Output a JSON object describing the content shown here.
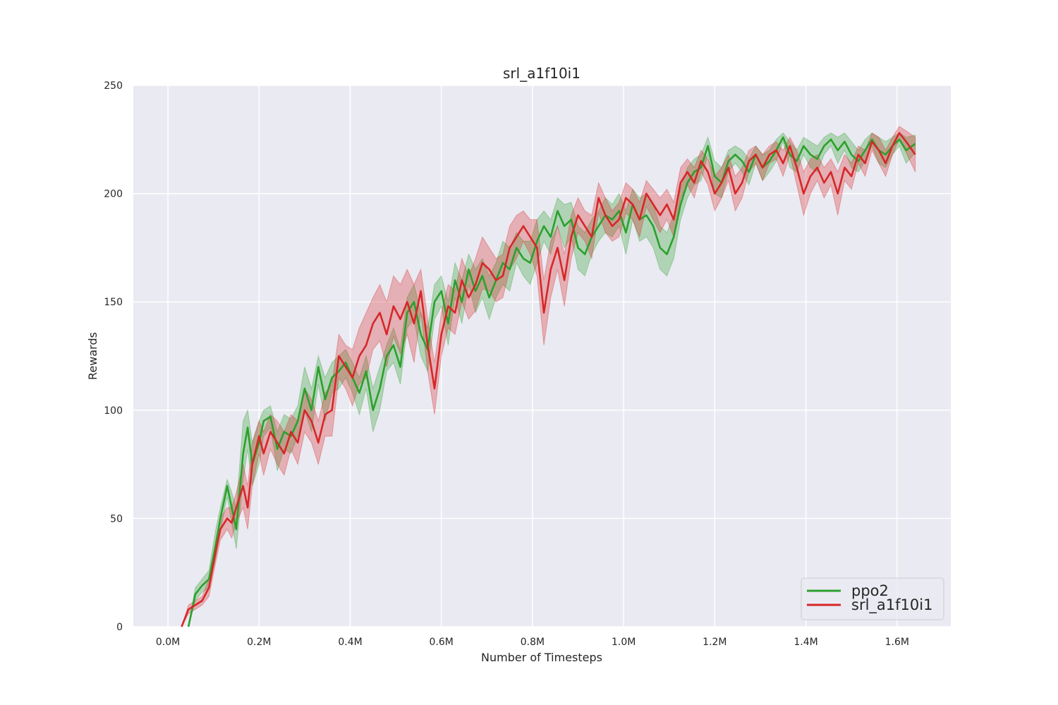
{
  "chart_data": {
    "type": "line",
    "title": "srl_a1f10i1",
    "xlabel": "Number of Timesteps",
    "ylabel": "Rewards",
    "xlim": [
      -76000,
      1718000
    ],
    "ylim": [
      0,
      250
    ],
    "xticks": [
      0,
      200000,
      400000,
      600000,
      800000,
      1000000,
      1200000,
      1400000,
      1600000
    ],
    "xtick_labels": [
      "0.0M",
      "0.2M",
      "0.4M",
      "0.6M",
      "0.8M",
      "1.0M",
      "1.2M",
      "1.4M",
      "1.6M"
    ],
    "yticks": [
      0,
      50,
      100,
      150,
      200,
      250
    ],
    "ytick_labels": [
      "0",
      "50",
      "100",
      "150",
      "200",
      "250"
    ],
    "grid": true,
    "background": "#eaeaf2",
    "legend_position": "bottom-right",
    "series": [
      {
        "name": "ppo2",
        "color": "#2ca02c",
        "x": [
          45000,
          60000,
          75000,
          90000,
          105000,
          115000,
          130000,
          140000,
          150000,
          165000,
          175000,
          185000,
          200000,
          210000,
          225000,
          240000,
          255000,
          270000,
          285000,
          300000,
          315000,
          330000,
          345000,
          360000,
          375000,
          390000,
          405000,
          420000,
          435000,
          450000,
          465000,
          480000,
          495000,
          510000,
          525000,
          540000,
          555000,
          570000,
          585000,
          600000,
          615000,
          630000,
          645000,
          660000,
          675000,
          690000,
          705000,
          720000,
          735000,
          750000,
          765000,
          780000,
          795000,
          810000,
          825000,
          840000,
          855000,
          870000,
          885000,
          900000,
          915000,
          930000,
          945000,
          960000,
          975000,
          990000,
          1005000,
          1020000,
          1035000,
          1050000,
          1065000,
          1080000,
          1095000,
          1110000,
          1125000,
          1140000,
          1155000,
          1170000,
          1185000,
          1200000,
          1215000,
          1230000,
          1245000,
          1260000,
          1275000,
          1290000,
          1305000,
          1320000,
          1335000,
          1350000,
          1365000,
          1380000,
          1395000,
          1410000,
          1425000,
          1440000,
          1455000,
          1470000,
          1485000,
          1500000,
          1515000,
          1530000,
          1545000,
          1560000,
          1575000,
          1590000,
          1605000,
          1620000,
          1640000
        ],
        "y": [
          0,
          15,
          19,
          22,
          38,
          50,
          65,
          55,
          45,
          80,
          92,
          75,
          85,
          95,
          97,
          82,
          90,
          88,
          95,
          110,
          100,
          120,
          105,
          115,
          118,
          122,
          115,
          108,
          118,
          100,
          110,
          125,
          130,
          120,
          145,
          150,
          135,
          128,
          150,
          155,
          140,
          160,
          150,
          165,
          155,
          162,
          152,
          160,
          168,
          165,
          175,
          170,
          168,
          178,
          185,
          180,
          192,
          185,
          188,
          175,
          172,
          180,
          185,
          190,
          188,
          192,
          182,
          195,
          188,
          190,
          185,
          175,
          172,
          180,
          195,
          205,
          210,
          212,
          222,
          208,
          205,
          215,
          218,
          215,
          210,
          218,
          212,
          215,
          220,
          226,
          218,
          215,
          222,
          218,
          216,
          222,
          225,
          220,
          224,
          218,
          215,
          220,
          225,
          220,
          218,
          222,
          225,
          220,
          223
        ],
        "upper": [
          0,
          18,
          22,
          26,
          45,
          55,
          68,
          62,
          55,
          95,
          100,
          85,
          95,
          100,
          102,
          90,
          98,
          96,
          102,
          120,
          110,
          125,
          115,
          122,
          125,
          128,
          122,
          115,
          125,
          110,
          120,
          130,
          138,
          128,
          152,
          158,
          145,
          138,
          158,
          162,
          150,
          168,
          160,
          172,
          165,
          170,
          162,
          168,
          178,
          175,
          182,
          178,
          178,
          188,
          192,
          188,
          198,
          195,
          196,
          185,
          182,
          188,
          192,
          198,
          195,
          200,
          192,
          202,
          198,
          200,
          195,
          185,
          182,
          190,
          202,
          212,
          216,
          218,
          226,
          215,
          212,
          220,
          222,
          220,
          216,
          222,
          218,
          220,
          225,
          228,
          224,
          220,
          226,
          224,
          222,
          226,
          228,
          226,
          228,
          224,
          220,
          225,
          228,
          226,
          224,
          226,
          228,
          226,
          227
        ],
        "lower": [
          0,
          12,
          16,
          18,
          32,
          44,
          60,
          48,
          36,
          68,
          82,
          65,
          75,
          88,
          92,
          72,
          82,
          80,
          88,
          100,
          90,
          112,
          95,
          108,
          110,
          115,
          108,
          98,
          110,
          90,
          100,
          118,
          122,
          112,
          138,
          142,
          125,
          118,
          142,
          148,
          130,
          152,
          140,
          158,
          145,
          152,
          142,
          152,
          158,
          155,
          168,
          162,
          158,
          168,
          178,
          172,
          185,
          175,
          180,
          165,
          162,
          172,
          178,
          182,
          180,
          185,
          172,
          188,
          178,
          180,
          175,
          165,
          162,
          170,
          188,
          198,
          204,
          206,
          218,
          200,
          198,
          210,
          214,
          210,
          204,
          214,
          206,
          210,
          215,
          224,
          212,
          210,
          218,
          212,
          210,
          218,
          222,
          214,
          220,
          212,
          210,
          215,
          222,
          214,
          212,
          218,
          222,
          214,
          219
        ]
      },
      {
        "name": "srl_a1f10i1",
        "color": "#d62728",
        "x": [
          30000,
          45000,
          60000,
          75000,
          90000,
          105000,
          115000,
          130000,
          140000,
          150000,
          165000,
          175000,
          185000,
          200000,
          210000,
          225000,
          240000,
          255000,
          270000,
          285000,
          300000,
          315000,
          330000,
          345000,
          360000,
          375000,
          390000,
          405000,
          420000,
          435000,
          450000,
          465000,
          480000,
          495000,
          510000,
          525000,
          540000,
          555000,
          570000,
          585000,
          600000,
          615000,
          630000,
          645000,
          660000,
          675000,
          690000,
          705000,
          720000,
          735000,
          750000,
          765000,
          780000,
          795000,
          810000,
          825000,
          840000,
          855000,
          870000,
          885000,
          900000,
          915000,
          930000,
          945000,
          960000,
          975000,
          990000,
          1005000,
          1020000,
          1035000,
          1050000,
          1065000,
          1080000,
          1095000,
          1110000,
          1125000,
          1140000,
          1155000,
          1170000,
          1185000,
          1200000,
          1215000,
          1230000,
          1245000,
          1260000,
          1275000,
          1290000,
          1305000,
          1320000,
          1335000,
          1350000,
          1365000,
          1380000,
          1395000,
          1410000,
          1425000,
          1440000,
          1455000,
          1470000,
          1485000,
          1500000,
          1515000,
          1530000,
          1545000,
          1560000,
          1575000,
          1590000,
          1605000,
          1620000,
          1640000
        ],
        "y": [
          0,
          8,
          10,
          12,
          18,
          35,
          45,
          50,
          48,
          55,
          65,
          55,
          75,
          88,
          80,
          90,
          85,
          80,
          90,
          85,
          100,
          95,
          85,
          98,
          100,
          125,
          120,
          115,
          125,
          130,
          140,
          145,
          135,
          148,
          142,
          150,
          140,
          155,
          130,
          110,
          135,
          148,
          145,
          160,
          152,
          158,
          168,
          165,
          160,
          162,
          175,
          180,
          185,
          180,
          175,
          145,
          165,
          175,
          160,
          180,
          190,
          185,
          180,
          198,
          190,
          185,
          188,
          198,
          195,
          188,
          200,
          195,
          190,
          195,
          188,
          205,
          210,
          205,
          215,
          210,
          200,
          205,
          212,
          200,
          205,
          215,
          218,
          212,
          218,
          220,
          214,
          222,
          212,
          200,
          208,
          212,
          205,
          210,
          200,
          212,
          208,
          218,
          214,
          224,
          220,
          214,
          222,
          228,
          224,
          218
        ],
        "upper": [
          0,
          10,
          12,
          14,
          22,
          40,
          50,
          55,
          55,
          62,
          75,
          65,
          85,
          95,
          90,
          98,
          95,
          90,
          98,
          95,
          110,
          105,
          95,
          108,
          112,
          135,
          130,
          128,
          138,
          145,
          152,
          158,
          150,
          162,
          158,
          165,
          158,
          165,
          142,
          122,
          145,
          158,
          155,
          170,
          162,
          170,
          180,
          175,
          170,
          172,
          185,
          190,
          192,
          188,
          188,
          160,
          178,
          185,
          172,
          190,
          198,
          192,
          190,
          205,
          198,
          192,
          196,
          205,
          202,
          196,
          206,
          202,
          198,
          202,
          196,
          212,
          216,
          212,
          220,
          216,
          208,
          212,
          218,
          208,
          212,
          220,
          222,
          218,
          222,
          224,
          220,
          226,
          220,
          210,
          216,
          218,
          212,
          216,
          210,
          218,
          214,
          222,
          220,
          228,
          226,
          220,
          226,
          231,
          229,
          226
        ],
        "lower": [
          0,
          6,
          8,
          10,
          14,
          30,
          40,
          45,
          41,
          48,
          55,
          45,
          65,
          80,
          70,
          82,
          75,
          70,
          82,
          75,
          90,
          85,
          75,
          88,
          88,
          115,
          110,
          102,
          112,
          115,
          128,
          132,
          120,
          134,
          126,
          135,
          122,
          145,
          118,
          98,
          125,
          138,
          135,
          150,
          142,
          146,
          156,
          155,
          150,
          152,
          165,
          170,
          178,
          172,
          162,
          130,
          152,
          165,
          148,
          170,
          182,
          178,
          170,
          191,
          182,
          178,
          180,
          191,
          188,
          180,
          194,
          188,
          182,
          188,
          180,
          198,
          204,
          198,
          210,
          204,
          192,
          198,
          206,
          192,
          198,
          210,
          214,
          206,
          214,
          216,
          208,
          218,
          204,
          190,
          200,
          206,
          198,
          204,
          190,
          206,
          202,
          214,
          208,
          220,
          214,
          208,
          218,
          225,
          219,
          210
        ]
      }
    ]
  }
}
